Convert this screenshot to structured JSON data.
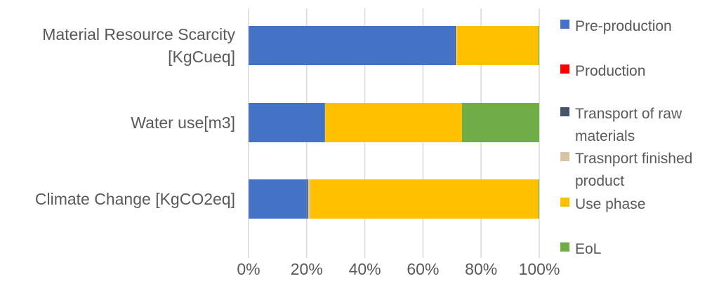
{
  "chart_data": {
    "type": "bar",
    "orientation": "horizontal",
    "stacked": "percent",
    "title": "",
    "xlabel": "",
    "ylabel": "",
    "xlim": [
      0,
      100
    ],
    "grid": true,
    "legend_position": "right",
    "categories": [
      "Material Resource Scarcity [KgCueq]",
      "Water use[m3]",
      "Climate Change [KgCO2eq]"
    ],
    "category_lines": [
      [
        "Material Resource Scarcity",
        "[KgCueq]"
      ],
      [
        "Water use[m3]"
      ],
      [
        "Climate Change [KgCO2eq]"
      ]
    ],
    "x_ticks": [
      "0%",
      "20%",
      "40%",
      "60%",
      "80%",
      "100%"
    ],
    "series": [
      {
        "name": "Pre-production",
        "legend_lines": [
          "Pre-production"
        ],
        "color": "#4472C4",
        "values": [
          71.0,
          26.3,
          20.0
        ]
      },
      {
        "name": "Production",
        "legend_lines": [
          "Production"
        ],
        "color": "#FF0000",
        "values": [
          0.0,
          0.0,
          0.0
        ]
      },
      {
        "name": "Transport of raw materials",
        "legend_lines": [
          "Transport of raw",
          "materials"
        ],
        "color": "#44546A",
        "values": [
          0.3,
          0.0,
          0.4
        ]
      },
      {
        "name": "Trasnport finished product",
        "legend_lines": [
          "Trasnport finished",
          "product"
        ],
        "color": "#D9C3A5",
        "values": [
          0.4,
          0.1,
          0.8
        ]
      },
      {
        "name": "Use phase",
        "legend_lines": [
          "Use phase"
        ],
        "color": "#FFC000",
        "values": [
          28.0,
          47.0,
          78.5
        ]
      },
      {
        "name": "EoL",
        "legend_lines": [
          "EoL"
        ],
        "color": "#70AD47",
        "values": [
          0.3,
          26.6,
          0.3
        ]
      }
    ]
  }
}
